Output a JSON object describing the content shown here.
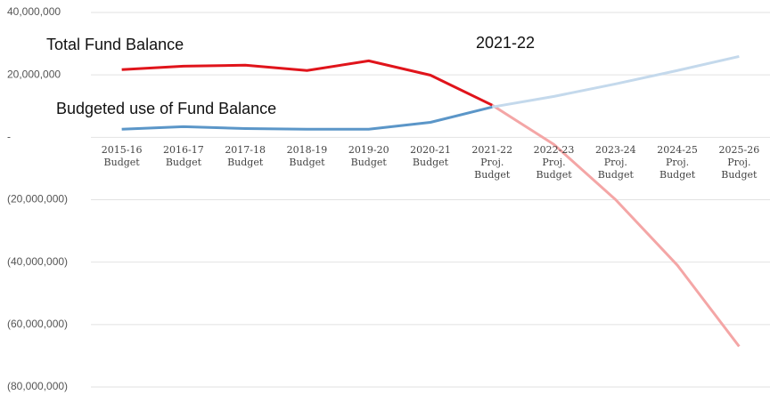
{
  "chart_data": {
    "type": "line",
    "categories": [
      "2015-16 Budget",
      "2016-17 Budget",
      "2017-18 Budget",
      "2018-19 Budget",
      "2019-20 Budget",
      "2020-21 Budget",
      "2021-22 Proj. Budget",
      "2022-23 Proj. Budget",
      "2023-24 Proj. Budget",
      "2024-25 Proj. Budget",
      "2025-26 Proj. Budget"
    ],
    "projected": [
      false,
      false,
      false,
      false,
      false,
      false,
      true,
      true,
      true,
      true,
      true
    ],
    "series": [
      {
        "name": "Total Fund Balance",
        "color": "#e0141b",
        "projected_color": "#f4a6a6",
        "values": [
          21700000,
          22800000,
          23100000,
          21400000,
          24500000,
          19900000,
          10300000,
          -2300000,
          -20000000,
          -41000000,
          -67000000
        ]
      },
      {
        "name": "Budgeted use of Fund Balance",
        "color": "#5b96c8",
        "projected_color": "#c4d9ec",
        "values": [
          2600000,
          3400000,
          2800000,
          2600000,
          2600000,
          4800000,
          9700000,
          13100000,
          17100000,
          21400000,
          25900000
        ]
      }
    ],
    "annotations": [
      "Total Fund Balance",
      "Budgeted use of Fund Balance",
      "2021-22"
    ],
    "ylim": [
      -80000000,
      40000000
    ],
    "yticks": [
      {
        "value": -80000000,
        "label": "(80,000,000)"
      },
      {
        "value": -60000000,
        "label": "(60,000,000)"
      },
      {
        "value": -40000000,
        "label": "(40,000,000)"
      },
      {
        "value": -20000000,
        "label": "(20,000,000)"
      },
      {
        "value": 0,
        "label": "-"
      },
      {
        "value": 20000000,
        "label": "20,000,000"
      },
      {
        "value": 40000000,
        "label": "40,000,000"
      }
    ],
    "grid": true
  }
}
